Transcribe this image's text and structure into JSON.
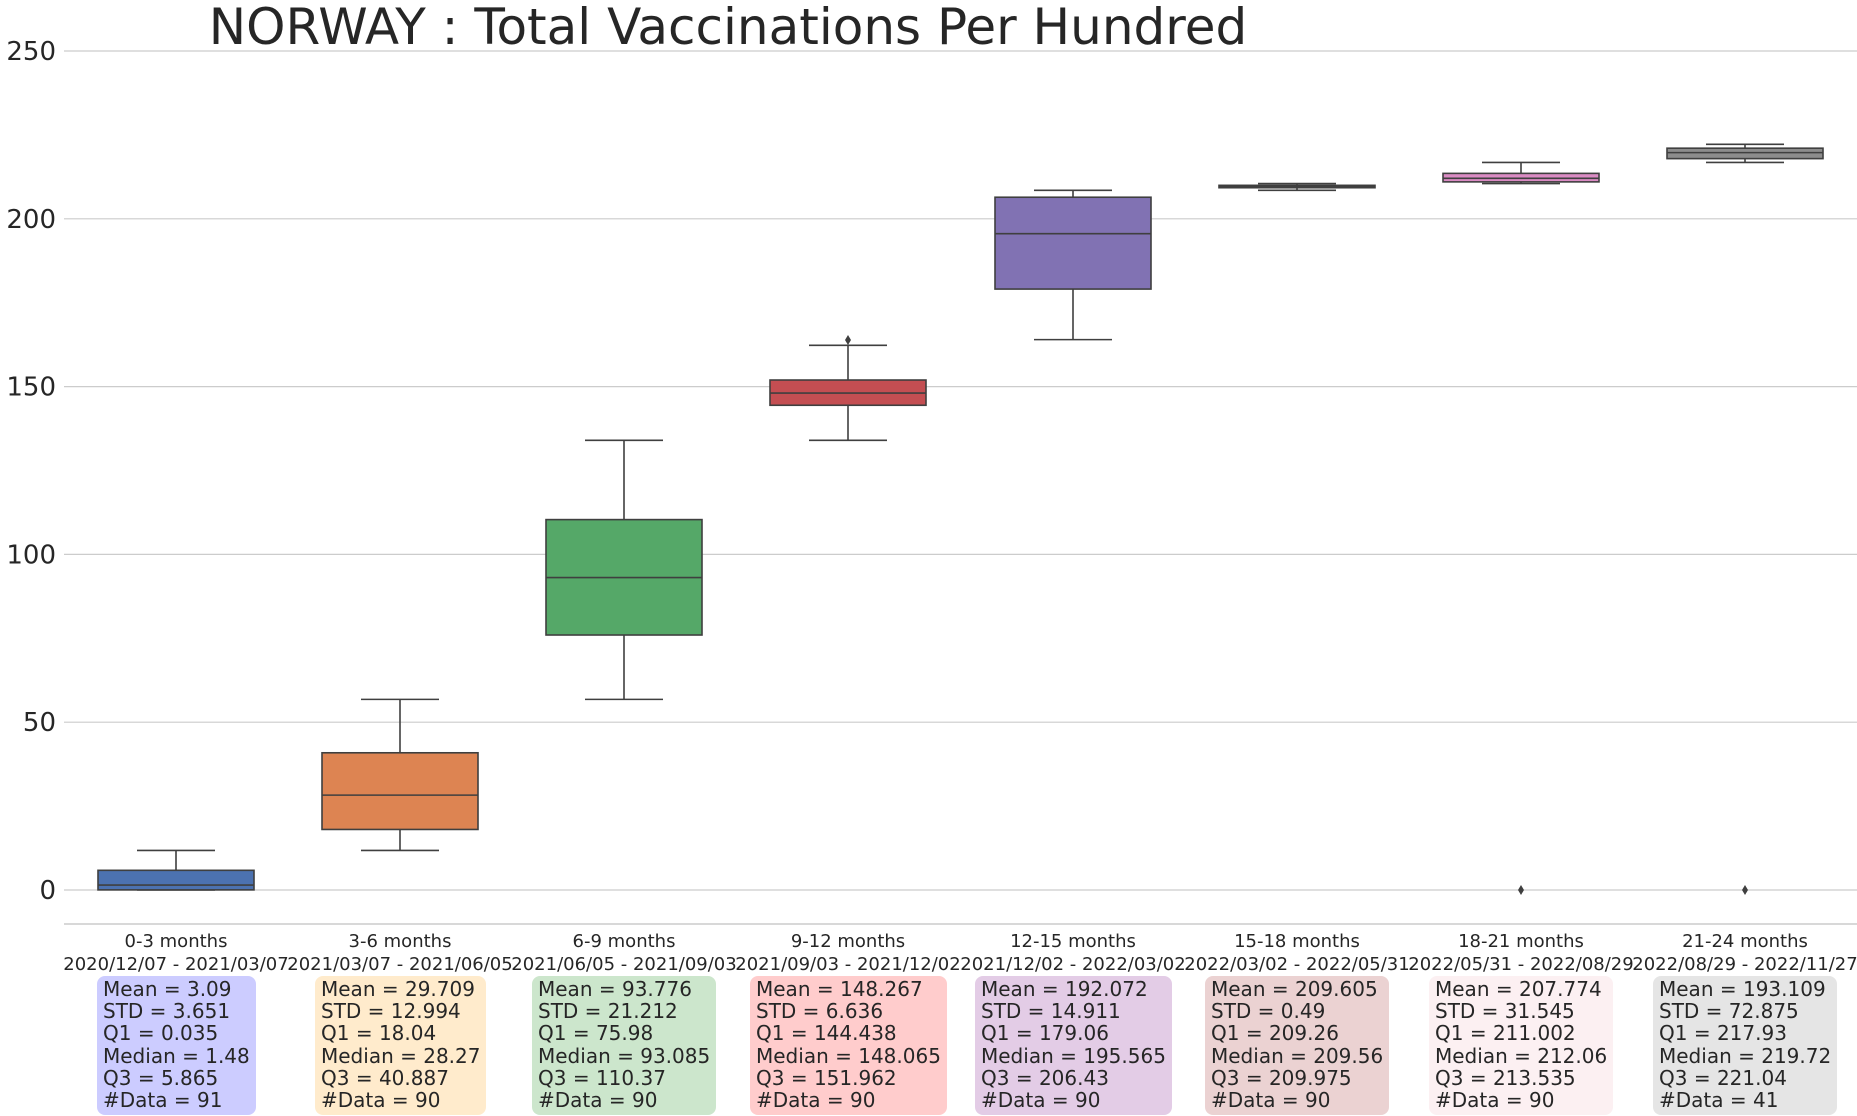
{
  "chart_data": {
    "type": "box",
    "title": "NORWAY : Total Vaccinations Per Hundred",
    "xlabel": "",
    "ylabel": "",
    "ylim": [
      -10,
      250
    ],
    "yticks": [
      0,
      50,
      100,
      150,
      200,
      250
    ],
    "grid": "horizontal",
    "categories": [
      {
        "label": "0-3 months",
        "dates": "2020/12/07 - 2021/03/07"
      },
      {
        "label": "3-6 months",
        "dates": "2021/03/07 - 2021/06/05"
      },
      {
        "label": "6-9 months",
        "dates": "2021/06/05 - 2021/09/03"
      },
      {
        "label": "9-12 months",
        "dates": "2021/09/03 - 2021/12/02"
      },
      {
        "label": "12-15 months",
        "dates": "2021/12/02 - 2022/03/02"
      },
      {
        "label": "15-18 months",
        "dates": "2022/03/02 - 2022/05/31"
      },
      {
        "label": "18-21 months",
        "dates": "2022/05/31 - 2022/08/29"
      },
      {
        "label": "21-24 months",
        "dates": "2022/08/29 - 2022/11/27"
      }
    ],
    "boxes": [
      {
        "whisker_low": 0.0,
        "q1": 0.035,
        "median": 1.48,
        "q3": 5.865,
        "whisker_high": 11.8,
        "outliers": [],
        "color": "#4c72b0"
      },
      {
        "whisker_low": 11.8,
        "q1": 18.04,
        "median": 28.27,
        "q3": 40.887,
        "whisker_high": 56.8,
        "outliers": [],
        "color": "#dd8452"
      },
      {
        "whisker_low": 56.8,
        "q1": 75.98,
        "median": 93.085,
        "q3": 110.37,
        "whisker_high": 134.0,
        "outliers": [],
        "color": "#55a868"
      },
      {
        "whisker_low": 134.0,
        "q1": 144.438,
        "median": 148.065,
        "q3": 151.962,
        "whisker_high": 162.3,
        "outliers": [
          163.9
        ],
        "color": "#c44e52"
      },
      {
        "whisker_low": 164.0,
        "q1": 179.06,
        "median": 195.565,
        "q3": 206.43,
        "whisker_high": 208.5,
        "outliers": [],
        "color": "#8172b3"
      },
      {
        "whisker_low": 208.5,
        "q1": 209.26,
        "median": 209.56,
        "q3": 209.975,
        "whisker_high": 210.5,
        "outliers": [],
        "color": "#937860"
      },
      {
        "whisker_low": 210.5,
        "q1": 211.002,
        "median": 212.06,
        "q3": 213.535,
        "whisker_high": 216.8,
        "outliers": [
          0
        ],
        "color": "#da8bc3"
      },
      {
        "whisker_low": 216.8,
        "q1": 217.93,
        "median": 219.72,
        "q3": 221.04,
        "whisker_high": 222.2,
        "outliers": [
          0
        ],
        "color": "#8c8c8c"
      }
    ],
    "stats": [
      {
        "lines": [
          "Mean = 3.09",
          "STD = 3.651",
          "Q1 = 0.035",
          "Median = 1.48",
          "Q3 = 5.865",
          "#Data = 91"
        ],
        "bg": "#ccccff"
      },
      {
        "lines": [
          "Mean = 29.709",
          "STD = 12.994",
          "Q1 = 18.04",
          "Median = 28.27",
          "Q3 = 40.887",
          "#Data = 90"
        ],
        "bg": "#ffebcc"
      },
      {
        "lines": [
          "Mean = 93.776",
          "STD = 21.212",
          "Q1 = 75.98",
          "Median = 93.085",
          "Q3 = 110.37",
          "#Data = 90"
        ],
        "bg": "#cce6cc"
      },
      {
        "lines": [
          "Mean = 148.267",
          "STD = 6.636",
          "Q1 = 144.438",
          "Median = 148.065",
          "Q3 = 151.962",
          "#Data = 90"
        ],
        "bg": "#ffcccc"
      },
      {
        "lines": [
          "Mean = 192.072",
          "STD = 14.911",
          "Q1 = 179.06",
          "Median = 195.565",
          "Q3 = 206.43",
          "#Data = 90"
        ],
        "bg": "#e3cce6"
      },
      {
        "lines": [
          "Mean = 209.605",
          "STD = 0.49",
          "Q1 = 209.26",
          "Median = 209.56",
          "Q3 = 209.975",
          "#Data = 90"
        ],
        "bg": "#ebd2d2"
      },
      {
        "lines": [
          "Mean = 207.774",
          "STD = 31.545",
          "Q1 = 211.002",
          "Median = 212.06",
          "Q3 = 213.535",
          "#Data = 90"
        ],
        "bg": "#fcf0f2"
      },
      {
        "lines": [
          "Mean = 193.109",
          "STD = 72.875",
          "Q1 = 217.93",
          "Median = 219.72",
          "Q3 = 221.04",
          "#Data = 41"
        ],
        "bg": "#e5e5e5"
      }
    ]
  }
}
